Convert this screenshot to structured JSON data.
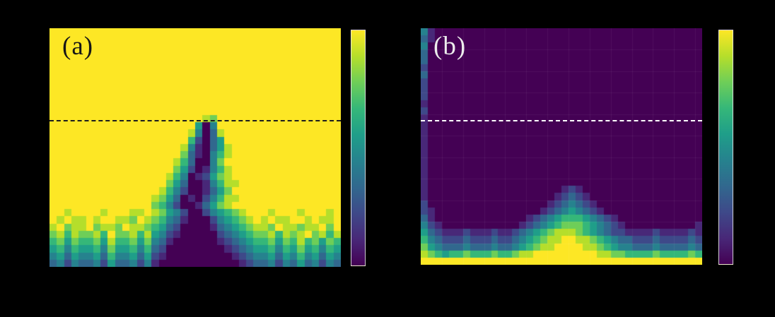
{
  "figure": {
    "background": "#000000",
    "panels": [
      {
        "id": "a",
        "label": "(a)",
        "label_color": "#161616"
      },
      {
        "id": "b",
        "label": "(b)",
        "label_color": "#ececec"
      }
    ]
  },
  "colormap_colors": [
    "#440154",
    "#482878",
    "#3e4989",
    "#31688e",
    "#26828e",
    "#1f9e89",
    "#35b779",
    "#6ece58",
    "#b5de2b",
    "#fde725"
  ],
  "chart_data": [
    {
      "type": "heatmap",
      "label": "(a)",
      "colormap": "viridis",
      "grid": {
        "cols": 40,
        "rows": 33
      },
      "value_scale": [
        0,
        9
      ],
      "dashed_line": {
        "row_fraction": 0.385,
        "color": "#1c1c1c"
      },
      "colorbar": {
        "orientation": "vertical",
        "min_color": "#440154",
        "max_color": "#fde725"
      },
      "rows": [
        "9999999999999999999999999999999999999999",
        "9999999999999999999999999999999999999999",
        "9999999999999999999999999999999999999999",
        "9999999999999999999999999999999999999999",
        "9999999999999999999999999999999999999999",
        "9999999999999999999999999999999999999999",
        "9999999999999999999999999999999999999999",
        "9999999999999999999999999999999999999999",
        "9999999999999999999999999999999999999999",
        "9999999999999999999999999999999999999999",
        "9999999999999999999999999999999999999999",
        "9999999999999999999999999999999999999999",
        "9999999999999999999998799999999999999999",
        "9999999999999999999950499999999999999999",
        "9999999999999999999840389999999999999999",
        "9999999999999999999620359999999999999999",
        "9999999999999999998410358999999999999999",
        "9999999999999999997310468999999999999999",
        "9999999999999999986300479999999999999999",
        "9999999999999999975201468999999999999999",
        "9999999999999999864012578999999999999999",
        "9999999999999999753001468899999999999999",
        "9999999999999998642001357999999999999999",
        "9999999999999987530102468899999999999999",
        "9999999999999976420013578999999999999999",
        "9989999899988987542002456789998999899989",
        "9898898998879876431000245678989889989889",
        "8978897887988765320000134567887988788979",
        "7868778697786854210000023456778687897868",
        "6757667586675743100000012345667576867576",
        "5646556475564632000000001234556465756465",
        "4535445364453521000000000123445354645354",
        "3424334253342410000000000012334243534243"
      ]
    },
    {
      "type": "heatmap",
      "label": "(b)",
      "colormap": "viridis",
      "grid": {
        "cols": 40,
        "rows": 33
      },
      "value_scale": [
        0,
        9
      ],
      "grid_step": 3,
      "grid_color": "rgba(255,255,255,0.06)",
      "dashed_line": {
        "row_fraction": 0.388,
        "color": "#ffffff"
      },
      "colorbar": {
        "orientation": "vertical",
        "min_color": "#440154",
        "max_color": "#fde725"
      },
      "rows": [
        "4100000000000000000000000000000000000000",
        "3100000000000000000000000000000000000000",
        "4000000000000000000000000000000000000000",
        "3000000000000000000000000000000000000000",
        "3000000000000000000000000000000000000000",
        "2000000000000000000000000000000000000000",
        "3000000000000000000000000000000000000000",
        "2000000000000000000000000000000000000000",
        "2000000000000000000000000000000000000000",
        "2000000000000000000000000000000000000000",
        "1000000000000000000000000000000000000000",
        "2000000000000000000000000000000000000000",
        "1000000000000000000000000000000000000000",
        "1000000000000000000000000000000000000000",
        "1000000000000000000000000000000000000000",
        "1000000000000000000000000000000000000000",
        "1000000000000000000000000000000000000000",
        "1000000000000000000000000000000000000000",
        "1000000000000000000000000000000000000000",
        "1000000000000000000000000000000000000000",
        "1000000000000000000000000000000000000000",
        "1000000000000000000000000000000000000000",
        "1000000000000000000012100000000000000000",
        "1000000000000000000123210000000000000000",
        "2000000000000000001234321000000000000000",
        "2100000000000000012345432100000000000000",
        "3100000000000001234566654321000000000000",
        "4210000000000012345677765432100000000001",
        "5321112111211234567888765432211112111121",
        "6432223222322345678899887654332223222232",
        "7543334333433456788999988765443334333343",
        "8765667666766788999999999887766667666676",
        "9999999999999999999999999999999999999999"
      ]
    }
  ]
}
